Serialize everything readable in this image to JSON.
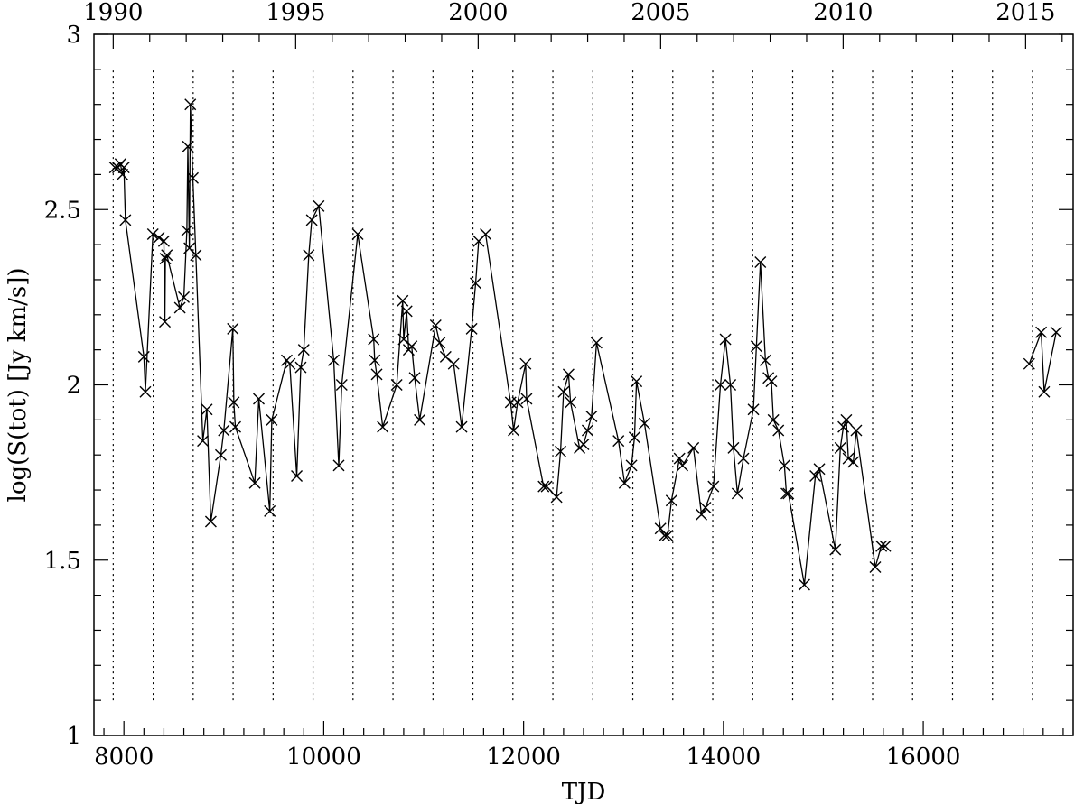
{
  "chart_data": {
    "type": "line",
    "title": "",
    "xlabel": "TJD",
    "ylabel": "log(S(tot) [Jy km/s])",
    "xlim": [
      7700,
      17500
    ],
    "ylim": [
      1,
      3
    ],
    "x_ticks": [
      8000,
      10000,
      12000,
      14000,
      16000
    ],
    "y_ticks": [
      1,
      1.5,
      2,
      2.5,
      3
    ],
    "y_tick_labels": [
      "1",
      "1.5",
      "2",
      "2.5",
      "3"
    ],
    "top_axis": {
      "ticks": [
        {
          "tjd": 7893,
          "label": "1990"
        },
        {
          "tjd": 9719,
          "label": "1995"
        },
        {
          "tjd": 11545,
          "label": "2000"
        },
        {
          "tjd": 13371,
          "label": "2005"
        },
        {
          "tjd": 15198,
          "label": "2010"
        },
        {
          "tjd": 17024,
          "label": "2015"
        }
      ]
    },
    "grid": false,
    "season_markers": {
      "style": "dotted",
      "x": [
        7893,
        8293,
        8693,
        9093,
        9493,
        9893,
        10293,
        10693,
        11093,
        11493,
        11893,
        12293,
        12693,
        13093,
        13493,
        13893,
        14293,
        14693,
        15093,
        15493,
        15893,
        16293,
        16693,
        17093
      ],
      "y_range": [
        1.1,
        2.9
      ]
    },
    "series": [
      {
        "marker": "x",
        "line": true,
        "x": [
          7910,
          7940,
          7965,
          7985,
          8000,
          8015,
          8200,
          8215,
          8290,
          8350,
          8400,
          8410,
          8415,
          8430,
          8560,
          8600,
          8630,
          8640,
          8655,
          8665,
          8690,
          8720,
          8790,
          8830,
          8870,
          8970,
          9000,
          9090,
          9100,
          9115,
          9310,
          9350,
          9460,
          9480,
          9630,
          9660,
          9730,
          9770,
          9800,
          9850,
          9880,
          9950,
          10100,
          10150,
          10180,
          10340,
          10500,
          10510,
          10530,
          10590,
          10730,
          10790,
          10800,
          10830,
          10850,
          10880,
          10910,
          10960,
          11120,
          11160,
          11220,
          11300,
          11380,
          11480,
          11520,
          11550,
          11620,
          11870,
          11900,
          11940,
          12020,
          12030,
          12200,
          12230,
          12330,
          12370,
          12400,
          12450,
          12470,
          12560,
          12600,
          12640,
          12680,
          12730,
          12950,
          13010,
          13080,
          13110,
          13130,
          13210,
          13370,
          13410,
          13440,
          13480,
          13560,
          13590,
          13700,
          13780,
          13820,
          13900,
          13970,
          14020,
          14070,
          14100,
          14140,
          14200,
          14300,
          14330,
          14370,
          14420,
          14450,
          14480,
          14500,
          14550,
          14610,
          14630,
          14650,
          14810,
          14920,
          14960,
          15120,
          15170,
          15200,
          15230,
          15250,
          15300,
          15330,
          15520,
          15580,
          15620,
          17060,
          17180,
          17210,
          17330
        ],
        "y": [
          2.62,
          2.62,
          2.63,
          2.6,
          2.62,
          2.47,
          2.08,
          1.98,
          2.43,
          2.42,
          2.41,
          2.18,
          2.36,
          2.37,
          2.22,
          2.25,
          2.44,
          2.68,
          2.39,
          2.8,
          2.59,
          2.37,
          1.84,
          1.93,
          1.61,
          1.8,
          1.87,
          2.16,
          1.95,
          1.88,
          1.72,
          1.96,
          1.64,
          1.9,
          2.07,
          2.06,
          1.74,
          2.05,
          2.1,
          2.37,
          2.47,
          2.51,
          2.07,
          1.77,
          2.0,
          2.43,
          2.13,
          2.07,
          2.03,
          1.88,
          2.0,
          2.24,
          2.13,
          2.21,
          2.1,
          2.11,
          2.02,
          1.9,
          2.17,
          2.12,
          2.08,
          2.06,
          1.88,
          2.16,
          2.29,
          2.41,
          2.43,
          1.95,
          1.87,
          1.95,
          2.06,
          1.96,
          1.71,
          1.71,
          1.68,
          1.81,
          1.98,
          2.03,
          1.95,
          1.82,
          1.83,
          1.87,
          1.91,
          2.12,
          1.84,
          1.72,
          1.77,
          1.85,
          2.01,
          1.89,
          1.59,
          1.57,
          1.57,
          1.67,
          1.79,
          1.77,
          1.82,
          1.63,
          1.65,
          1.71,
          2.0,
          2.13,
          2.0,
          1.82,
          1.69,
          1.79,
          1.93,
          2.11,
          2.35,
          2.07,
          2.02,
          2.01,
          1.9,
          1.87,
          1.77,
          1.69,
          1.69,
          1.43,
          1.74,
          1.76,
          1.53,
          1.82,
          1.88,
          1.9,
          1.79,
          1.78,
          1.87,
          1.48,
          1.54,
          1.54,
          2.06,
          2.15,
          1.98,
          2.15
        ]
      }
    ]
  }
}
